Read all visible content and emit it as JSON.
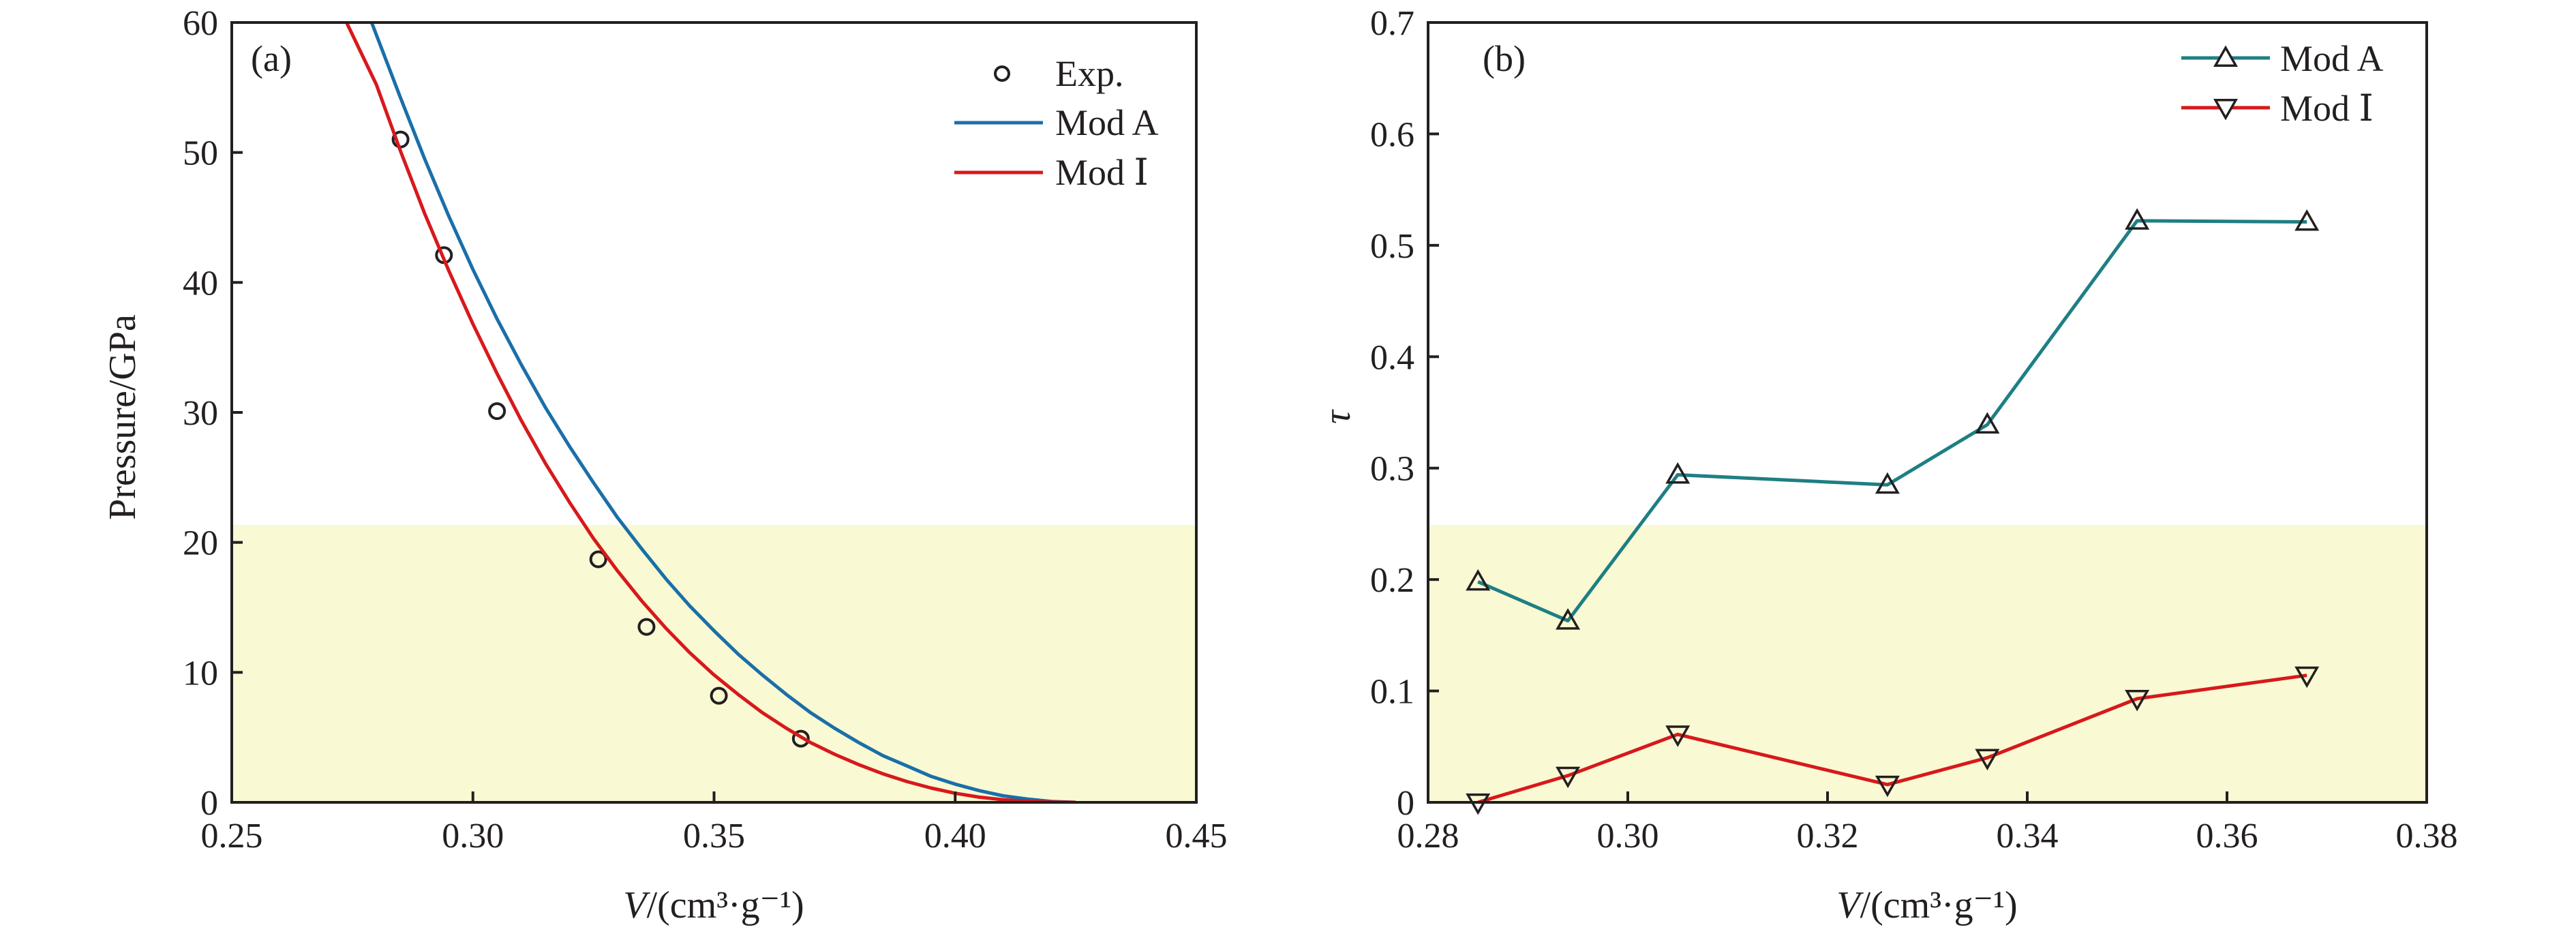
{
  "chart_data": [
    {
      "panel": "(a)",
      "type": "line",
      "title": "",
      "xlabel_italic": "V",
      "xlabel_rest": "/(cm³·g⁻¹)",
      "ylabel": "Pressure/GPa",
      "xlim": [
        0.25,
        0.45
      ],
      "ylim": [
        0,
        60
      ],
      "xticks": [
        0.25,
        0.3,
        0.35,
        0.4,
        0.45
      ],
      "xtick_labels": [
        "0.25",
        "0.30",
        "0.35",
        "0.40",
        "0.45"
      ],
      "yticks": [
        0,
        10,
        20,
        30,
        40,
        50,
        60
      ],
      "ytick_labels": [
        "0",
        "10",
        "20",
        "30",
        "40",
        "50",
        "60"
      ],
      "grid": false,
      "legend_position": "top-right",
      "series": [
        {
          "name": "Exp.",
          "style": "markers",
          "marker": "open-circle",
          "color": "#231f20",
          "x": [
            0.285,
            0.294,
            0.305,
            0.326,
            0.336,
            0.351,
            0.368
          ],
          "y": [
            51.0,
            42.1,
            30.1,
            18.7,
            13.5,
            8.2,
            4.9
          ]
        },
        {
          "name": "Mod A",
          "style": "line",
          "color": "#1a6fa8",
          "x": [
            0.279,
            0.285,
            0.29,
            0.295,
            0.3,
            0.305,
            0.31,
            0.315,
            0.32,
            0.325,
            0.33,
            0.335,
            0.34,
            0.345,
            0.35,
            0.355,
            0.36,
            0.365,
            0.37,
            0.375,
            0.38,
            0.385,
            0.39,
            0.395,
            0.4,
            0.405,
            0.41,
            0.415,
            0.42,
            0.425
          ],
          "y": [
            60.0,
            54.2,
            49.5,
            45.1,
            41.0,
            37.2,
            33.7,
            30.4,
            27.4,
            24.6,
            21.9,
            19.5,
            17.2,
            15.1,
            13.2,
            11.4,
            9.8,
            8.3,
            6.9,
            5.7,
            4.6,
            3.6,
            2.8,
            2.0,
            1.4,
            0.9,
            0.5,
            0.25,
            0.07,
            0.0
          ]
        },
        {
          "name": "Mod Ⅰ",
          "style": "line",
          "color": "#d7191c",
          "x": [
            0.2738,
            0.28,
            0.285,
            0.29,
            0.295,
            0.3,
            0.305,
            0.31,
            0.315,
            0.32,
            0.325,
            0.33,
            0.335,
            0.34,
            0.345,
            0.35,
            0.355,
            0.36,
            0.365,
            0.37,
            0.375,
            0.38,
            0.385,
            0.39,
            0.395,
            0.4,
            0.405,
            0.41,
            0.415,
            0.42,
            0.425
          ],
          "y": [
            60.0,
            55.2,
            50.1,
            45.3,
            40.9,
            36.8,
            33.0,
            29.4,
            26.1,
            23.1,
            20.3,
            17.8,
            15.5,
            13.4,
            11.5,
            9.8,
            8.3,
            6.9,
            5.7,
            4.6,
            3.7,
            2.9,
            2.2,
            1.6,
            1.1,
            0.7,
            0.4,
            0.2,
            0.08,
            0.02,
            0.0
          ]
        }
      ]
    },
    {
      "panel": "(b)",
      "type": "line",
      "title": "",
      "xlabel_italic": "V",
      "xlabel_rest": "/(cm³·g⁻¹)",
      "ylabel": "τ",
      "xlim": [
        0.28,
        0.38
      ],
      "ylim": [
        0,
        0.7
      ],
      "xticks": [
        0.28,
        0.3,
        0.32,
        0.34,
        0.36,
        0.38
      ],
      "xtick_labels": [
        "0.28",
        "0.30",
        "0.32",
        "0.34",
        "0.36",
        "0.38"
      ],
      "yticks": [
        0,
        0.1,
        0.2,
        0.3,
        0.4,
        0.5,
        0.6,
        0.7
      ],
      "ytick_labels": [
        "0",
        "0.1",
        "0.2",
        "0.3",
        "0.4",
        "0.5",
        "0.6",
        "0.7"
      ],
      "grid": false,
      "legend_position": "top-right",
      "series": [
        {
          "name": "Mod A",
          "style": "line-markers",
          "marker": "open-triangle-up",
          "color": "#1e7f84",
          "x": [
            0.285,
            0.294,
            0.305,
            0.326,
            0.336,
            0.351,
            0.368
          ],
          "y": [
            0.198,
            0.163,
            0.294,
            0.285,
            0.339,
            0.522,
            0.521
          ]
        },
        {
          "name": "Mod Ⅰ",
          "style": "line-markers",
          "marker": "open-triangle-down",
          "color": "#d7191c",
          "x": [
            0.285,
            0.294,
            0.305,
            0.326,
            0.336,
            0.351,
            0.368
          ],
          "y": [
            0.0,
            0.024,
            0.061,
            0.016,
            0.04,
            0.093,
            0.114
          ]
        }
      ]
    }
  ]
}
